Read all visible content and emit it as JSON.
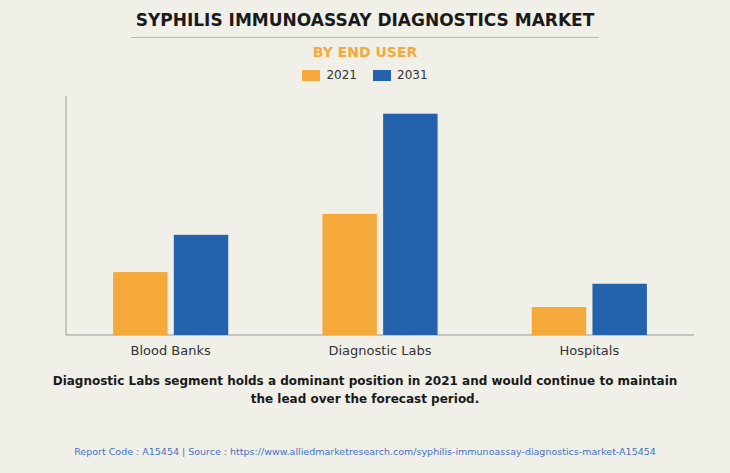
{
  "chart_data": {
    "type": "bar",
    "title": "SYPHILIS IMMUNOASSAY DIAGNOSTICS MARKET",
    "subtitle": "BY END USER",
    "categories": [
      "Blood Banks",
      "Diagnostic Labs",
      "Hospitals"
    ],
    "series": [
      {
        "name": "2021",
        "color": "#F5A93A",
        "values": [
          0.27,
          0.52,
          0.12
        ]
      },
      {
        "name": "2031",
        "color": "#2462AE",
        "values": [
          0.43,
          0.95,
          0.22
        ]
      }
    ],
    "ylim": [
      0,
      1.026
    ],
    "grid": false,
    "legend": "top",
    "tick_labels": "x",
    "annotations": [
      "Diagnostic Labs segment holds a dominant position in 2021 and would continue to maintain\nthe lead over the forecast period.",
      "Report Code : A15454  |  Source : https://www.alliedmarketresearch.com/syphilis-immunoassay-diagnostics-market-A15454"
    ]
  }
}
